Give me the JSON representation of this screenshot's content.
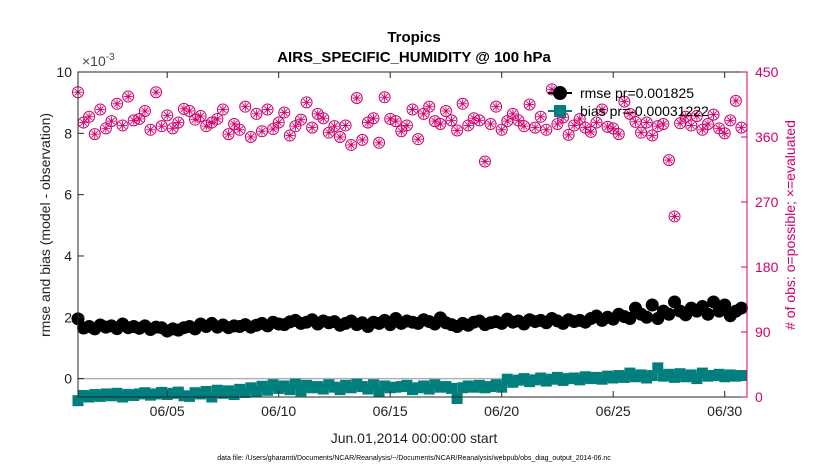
{
  "chart_data": {
    "type": "scatter",
    "title": "Tropics",
    "subtitle": "AIRS_SPECIFIC_HUMIDITY @ 100 hPa",
    "xlabel": "Jun.01,2014 00:00:00 start",
    "ylabel_left": "rmse and bias (model - observation)",
    "ylabel_right": "# of obs: o=possible; ×=evaluated",
    "exponent_label": "×10",
    "exponent_power": "-3",
    "footer": "data file: /Users/gharamti/Documents/NCAR/Reanalysis/~/Documents/NCAR/Reanalysis/webpub/obs_diag_output_2014-06.nc",
    "xlim": [
      1.0,
      31.0
    ],
    "ylim_left": [
      -0.6,
      10
    ],
    "ylim_right": [
      0,
      450
    ],
    "x_ticks": [
      {
        "value": 5,
        "label": "06/05"
      },
      {
        "value": 10,
        "label": "06/10"
      },
      {
        "value": 15,
        "label": "06/15"
      },
      {
        "value": 20,
        "label": "06/20"
      },
      {
        "value": 25,
        "label": "06/25"
      },
      {
        "value": 30,
        "label": "06/30"
      }
    ],
    "y_ticks_left": [
      {
        "value": 0,
        "label": "0"
      },
      {
        "value": 2,
        "label": "2"
      },
      {
        "value": 4,
        "label": "4"
      },
      {
        "value": 6,
        "label": "6"
      },
      {
        "value": 8,
        "label": "8"
      },
      {
        "value": 10,
        "label": "10"
      }
    ],
    "y_ticks_right": [
      {
        "value": 0,
        "label": "0"
      },
      {
        "value": 90,
        "label": "90"
      },
      {
        "value": 180,
        "label": "180"
      },
      {
        "value": 270,
        "label": "270"
      },
      {
        "value": 360,
        "label": "360"
      },
      {
        "value": 450,
        "label": "450"
      }
    ],
    "legend": [
      {
        "name": "rmse pr=0.001825",
        "color": "#000000",
        "marker": "circle"
      },
      {
        "name": "bias pr=-0.00031222",
        "color": "#007f7f",
        "marker": "square"
      }
    ],
    "legend_position": "top-right",
    "colors": {
      "rmse": "#000000",
      "bias": "#007f7f",
      "obs": "#d1006b",
      "zero_line": "#b0b0b0"
    },
    "series": [
      {
        "name": "rmse",
        "axis": "left",
        "x": [
          1.0,
          1.25,
          1.5,
          1.75,
          2.0,
          2.25,
          2.5,
          2.75,
          3.0,
          3.25,
          3.5,
          3.75,
          4.0,
          4.25,
          4.5,
          4.75,
          5.0,
          5.25,
          5.5,
          5.75,
          6.0,
          6.25,
          6.5,
          6.75,
          7.0,
          7.25,
          7.5,
          7.75,
          8.0,
          8.25,
          8.5,
          8.75,
          9.0,
          9.25,
          9.5,
          9.75,
          10.0,
          10.25,
          10.5,
          10.75,
          11.0,
          11.25,
          11.5,
          11.75,
          12.0,
          12.25,
          12.5,
          12.75,
          13.0,
          13.25,
          13.5,
          13.75,
          14.0,
          14.25,
          14.5,
          14.75,
          15.0,
          15.25,
          15.5,
          15.75,
          16.0,
          16.25,
          16.5,
          16.75,
          17.0,
          17.25,
          17.5,
          17.75,
          18.0,
          18.25,
          18.5,
          18.75,
          19.0,
          19.25,
          19.5,
          19.75,
          20.0,
          20.25,
          20.5,
          20.75,
          21.0,
          21.25,
          21.5,
          21.75,
          22.0,
          22.25,
          22.5,
          22.75,
          23.0,
          23.25,
          23.5,
          23.75,
          24.0,
          24.25,
          24.5,
          24.75,
          25.0,
          25.25,
          25.5,
          25.75,
          26.0,
          26.25,
          26.5,
          26.75,
          27.0,
          27.25,
          27.5,
          27.75,
          28.0,
          28.25,
          28.5,
          28.75,
          29.0,
          29.25,
          29.5,
          29.75,
          30.0,
          30.25,
          30.5,
          30.75
        ],
        "values": [
          1.95,
          1.65,
          1.7,
          1.62,
          1.75,
          1.68,
          1.72,
          1.63,
          1.78,
          1.66,
          1.7,
          1.64,
          1.72,
          1.6,
          1.68,
          1.66,
          1.55,
          1.62,
          1.58,
          1.66,
          1.7,
          1.62,
          1.78,
          1.7,
          1.8,
          1.68,
          1.75,
          1.66,
          1.72,
          1.7,
          1.76,
          1.68,
          1.74,
          1.8,
          1.72,
          1.84,
          1.78,
          1.76,
          1.85,
          1.9,
          1.8,
          1.84,
          1.92,
          1.78,
          1.88,
          1.82,
          1.86,
          1.74,
          1.8,
          1.88,
          1.76,
          1.82,
          1.7,
          1.84,
          1.8,
          1.9,
          1.76,
          1.96,
          1.8,
          1.88,
          1.84,
          1.8,
          1.92,
          1.86,
          1.78,
          1.98,
          1.82,
          1.76,
          1.7,
          1.8,
          1.74,
          1.84,
          1.88,
          1.76,
          1.82,
          1.86,
          1.8,
          1.94,
          1.84,
          1.88,
          1.78,
          1.92,
          1.86,
          1.9,
          1.82,
          1.96,
          1.88,
          1.8,
          1.92,
          1.86,
          1.9,
          1.84,
          1.96,
          2.04,
          1.9,
          2.0,
          1.94,
          2.1,
          2.02,
          1.96,
          2.3,
          2.1,
          2.0,
          2.4,
          1.96,
          2.2,
          2.1,
          2.5,
          2.2,
          2.08,
          2.3,
          2.2,
          2.35,
          2.1,
          2.5,
          2.2,
          2.4,
          2.05,
          2.2,
          2.3
        ]
      },
      {
        "name": "bias",
        "axis": "left",
        "x": [
          1.0,
          1.25,
          1.5,
          1.75,
          2.0,
          2.25,
          2.5,
          2.75,
          3.0,
          3.25,
          3.5,
          3.75,
          4.0,
          4.25,
          4.5,
          4.75,
          5.0,
          5.25,
          5.5,
          5.75,
          6.0,
          6.25,
          6.5,
          6.75,
          7.0,
          7.25,
          7.5,
          7.75,
          8.0,
          8.25,
          8.5,
          8.75,
          9.0,
          9.25,
          9.5,
          9.75,
          10.0,
          10.25,
          10.5,
          10.75,
          11.0,
          11.25,
          11.5,
          11.75,
          12.0,
          12.25,
          12.5,
          12.75,
          13.0,
          13.25,
          13.5,
          13.75,
          14.0,
          14.25,
          14.5,
          14.75,
          15.0,
          15.25,
          15.5,
          15.75,
          16.0,
          16.25,
          16.5,
          16.75,
          17.0,
          17.25,
          17.5,
          17.75,
          18.0,
          18.25,
          18.5,
          18.75,
          19.0,
          19.25,
          19.5,
          19.75,
          20.0,
          20.25,
          20.5,
          20.75,
          21.0,
          21.25,
          21.5,
          21.75,
          22.0,
          22.25,
          22.5,
          22.75,
          23.0,
          23.25,
          23.5,
          23.75,
          24.0,
          24.25,
          24.5,
          24.75,
          25.0,
          25.25,
          25.5,
          25.75,
          26.0,
          26.25,
          26.5,
          26.75,
          27.0,
          27.25,
          27.5,
          27.75,
          28.0,
          28.25,
          28.5,
          28.75,
          29.0,
          29.25,
          29.5,
          29.75,
          30.0,
          30.25,
          30.5,
          30.75
        ],
        "values": [
          -0.72,
          -0.55,
          -0.6,
          -0.52,
          -0.58,
          -0.5,
          -0.56,
          -0.48,
          -0.6,
          -0.52,
          -0.55,
          -0.5,
          -0.46,
          -0.54,
          -0.5,
          -0.45,
          -0.52,
          -0.48,
          -0.44,
          -0.56,
          -0.58,
          -0.46,
          -0.5,
          -0.42,
          -0.6,
          -0.38,
          -0.48,
          -0.4,
          -0.52,
          -0.35,
          -0.45,
          -0.3,
          -0.42,
          -0.25,
          -0.38,
          -0.2,
          -0.32,
          -0.24,
          -0.36,
          -0.18,
          -0.4,
          -0.22,
          -0.3,
          -0.26,
          -0.34,
          -0.2,
          -0.28,
          -0.36,
          -0.22,
          -0.3,
          -0.18,
          -0.26,
          -0.34,
          -0.2,
          -0.42,
          -0.24,
          -0.3,
          -0.28,
          -0.26,
          -0.22,
          -0.36,
          -0.3,
          -0.24,
          -0.34,
          -0.2,
          -0.28,
          -0.26,
          -0.32,
          -0.65,
          -0.3,
          -0.24,
          -0.28,
          -0.22,
          -0.3,
          -0.26,
          -0.2,
          -0.28,
          -0.02,
          -0.12,
          -0.05,
          0.0,
          -0.1,
          -0.04,
          0.02,
          -0.08,
          -0.02,
          0.04,
          -0.06,
          0.0,
          0.02,
          -0.04,
          0.06,
          0.0,
          0.04,
          -0.02,
          0.08,
          0.02,
          0.1,
          0.04,
          0.18,
          0.06,
          0.12,
          0.02,
          0.1,
          0.35,
          0.08,
          0.14,
          0.04,
          0.16,
          0.06,
          0.12,
          0.0,
          0.18,
          0.08,
          0.1,
          0.14,
          0.06,
          0.12,
          0.08,
          0.1
        ]
      },
      {
        "name": "obs possible/evaluated",
        "axis": "right",
        "x": [
          1.0,
          1.25,
          1.5,
          1.75,
          2.0,
          2.25,
          2.5,
          2.75,
          3.0,
          3.25,
          3.5,
          3.75,
          4.0,
          4.25,
          4.5,
          4.75,
          5.0,
          5.25,
          5.5,
          5.75,
          6.0,
          6.25,
          6.5,
          6.75,
          7.0,
          7.25,
          7.5,
          7.75,
          8.0,
          8.25,
          8.5,
          8.75,
          9.0,
          9.25,
          9.5,
          9.75,
          10.0,
          10.25,
          10.5,
          10.75,
          11.0,
          11.25,
          11.5,
          11.75,
          12.0,
          12.25,
          12.5,
          12.75,
          13.0,
          13.25,
          13.5,
          13.75,
          14.0,
          14.25,
          14.5,
          14.75,
          15.0,
          15.25,
          15.5,
          15.75,
          16.0,
          16.25,
          16.5,
          16.75,
          17.0,
          17.25,
          17.5,
          17.75,
          18.0,
          18.25,
          18.5,
          18.75,
          19.0,
          19.25,
          19.5,
          19.75,
          20.0,
          20.25,
          20.5,
          20.75,
          21.0,
          21.25,
          21.5,
          21.75,
          22.0,
          22.25,
          22.5,
          22.75,
          23.0,
          23.25,
          23.5,
          23.75,
          24.0,
          24.25,
          24.5,
          24.75,
          25.0,
          25.25,
          25.5,
          25.75,
          26.0,
          26.25,
          26.5,
          26.75,
          27.0,
          27.25,
          27.5,
          27.75,
          28.0,
          28.25,
          28.5,
          28.75,
          29.0,
          29.25,
          29.5,
          29.75,
          30.0,
          30.25,
          30.5,
          30.75
        ],
        "values": [
          422,
          380,
          388,
          364,
          398,
          372,
          382,
          406,
          376,
          416,
          383,
          385,
          396,
          370,
          422,
          375,
          390,
          372,
          380,
          399,
          396,
          384,
          389,
          375,
          380,
          385,
          398,
          364,
          378,
          370,
          402,
          360,
          392,
          368,
          398,
          371,
          380,
          394,
          362,
          375,
          384,
          408,
          373,
          392,
          386,
          366,
          375,
          360,
          376,
          349,
          414,
          356,
          380,
          386,
          352,
          415,
          385,
          382,
          368,
          376,
          398,
          357,
          392,
          402,
          382,
          378,
          396,
          383,
          369,
          406,
          376,
          386,
          383,
          326,
          378,
          402,
          370,
          382,
          392,
          383,
          375,
          405,
          373,
          388,
          370,
          426,
          378,
          387,
          363,
          376,
          385,
          373,
          367,
          380,
          398,
          374,
          372,
          364,
          409,
          392,
          381,
          366,
          380,
          362,
          375,
          378,
          328,
          250,
          379,
          388,
          376,
          389,
          370,
          378,
          391,
          372,
          365,
          383,
          410,
          373
        ]
      }
    ]
  }
}
